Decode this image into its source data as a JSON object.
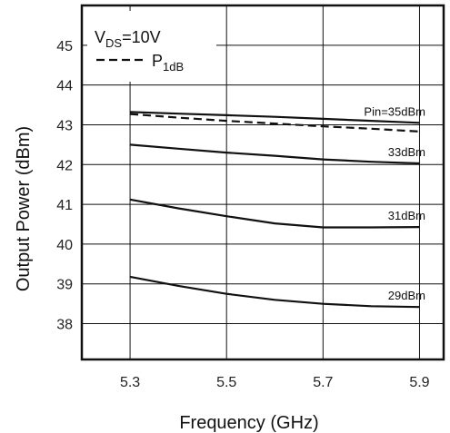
{
  "chart_data": {
    "type": "line",
    "xlabel": "Frequency (GHz)",
    "ylabel": "Output Power (dBm)",
    "xlim": [
      5.2,
      5.95
    ],
    "ylim": [
      37.1,
      46.0
    ],
    "x_ticks": [
      "5.3",
      "5.5",
      "5.7",
      "5.9"
    ],
    "y_ticks": [
      "38",
      "39",
      "40",
      "41",
      "42",
      "43",
      "44",
      "45"
    ],
    "grid": true,
    "legend_position": "top-left",
    "legend": {
      "line1_main": "V",
      "line1_sub": "DS",
      "line1_rest": "=10V",
      "line2_main": "P",
      "line2_sub": "1dB"
    },
    "series": [
      {
        "name": "Pin=35dBm",
        "style": "solid",
        "x": [
          5.3,
          5.4,
          5.5,
          5.6,
          5.7,
          5.8,
          5.9
        ],
        "y": [
          43.32,
          43.28,
          43.24,
          43.2,
          43.15,
          43.1,
          43.05
        ]
      },
      {
        "name": "P1dB",
        "style": "dashed",
        "x": [
          5.3,
          5.4,
          5.5,
          5.6,
          5.7,
          5.8,
          5.9
        ],
        "y": [
          43.27,
          43.18,
          43.1,
          43.03,
          42.96,
          42.9,
          42.83
        ]
      },
      {
        "name": "33dBm",
        "style": "solid",
        "x": [
          5.3,
          5.4,
          5.5,
          5.6,
          5.7,
          5.8,
          5.9
        ],
        "y": [
          42.5,
          42.4,
          42.3,
          42.22,
          42.13,
          42.07,
          42.03
        ]
      },
      {
        "name": "31dBm",
        "style": "solid",
        "x": [
          5.3,
          5.4,
          5.5,
          5.6,
          5.7,
          5.8,
          5.9
        ],
        "y": [
          41.12,
          40.9,
          40.7,
          40.52,
          40.42,
          40.42,
          40.43
        ]
      },
      {
        "name": "29dBm",
        "style": "solid",
        "x": [
          5.3,
          5.4,
          5.5,
          5.6,
          5.7,
          5.8,
          5.9
        ],
        "y": [
          39.18,
          38.95,
          38.75,
          38.6,
          38.5,
          38.44,
          38.42
        ]
      }
    ]
  }
}
